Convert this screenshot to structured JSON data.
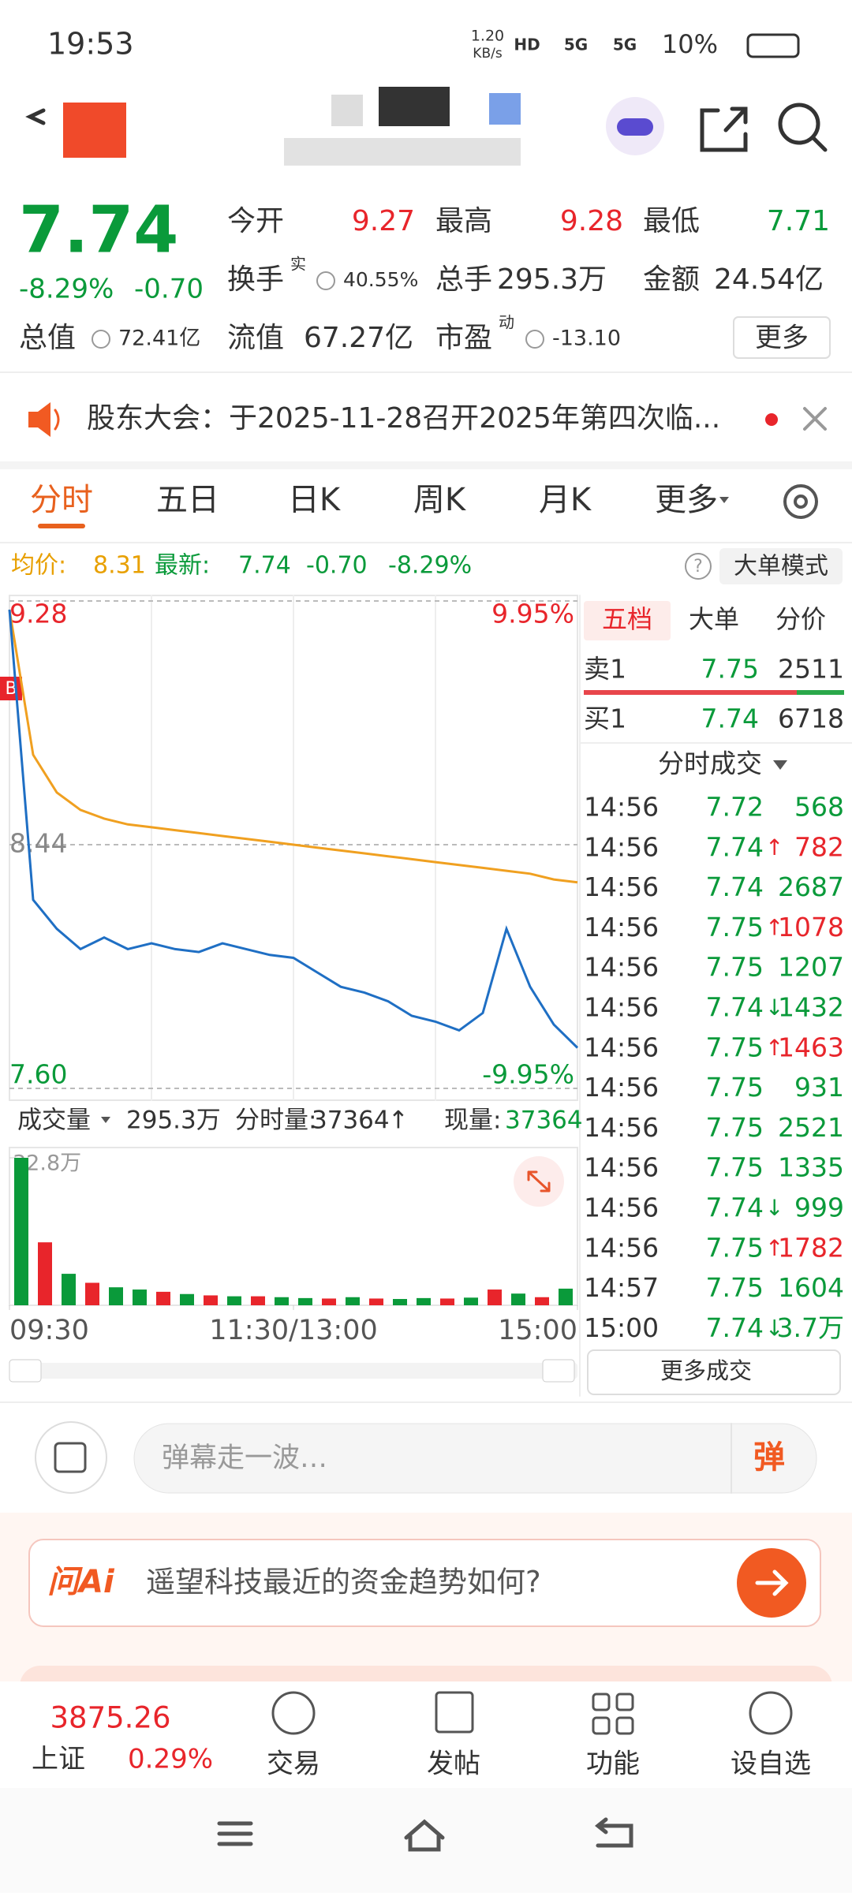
{
  "status_bar": {
    "time": "19:53",
    "net_speed": "1.20",
    "net_unit": "KB/s",
    "signals": [
      "HD",
      "5G",
      "5G"
    ],
    "battery": "10%"
  },
  "quote": {
    "price": "7.74",
    "change_pct": "-8.29%",
    "change": "-0.70",
    "fields": [
      {
        "label": "今开",
        "value": "9.27",
        "color": "#e8252b"
      },
      {
        "label": "最高",
        "value": "9.28",
        "color": "#e8252b"
      },
      {
        "label": "最低",
        "value": "7.71",
        "color": "#0a9a3a"
      },
      {
        "label": "换手",
        "sup": "实",
        "value": "40.55%",
        "color": "#333333"
      },
      {
        "label": "总手",
        "value": "295.3万",
        "color": "#333333"
      },
      {
        "label": "金额",
        "value": "24.54亿",
        "color": "#333333"
      },
      {
        "label": "总值",
        "value": "72.41亿",
        "color": "#333333"
      },
      {
        "label": "流值",
        "value": "67.27亿",
        "color": "#333333"
      },
      {
        "label": "市盈",
        "sup": "动",
        "value": "-13.10",
        "color": "#333333"
      }
    ],
    "more": "更多"
  },
  "notice": {
    "text": "股东大会：于2025-11-28召开2025年第四次临..."
  },
  "tabs": [
    "分时",
    "五日",
    "日K",
    "周K",
    "月K",
    "更多"
  ],
  "info_line": {
    "avg_label": "均价:",
    "avg": "8.31",
    "latest_label": "最新:",
    "latest": "7.74",
    "change": "-0.70",
    "change_pct": "-8.29%",
    "mode": "大单模式"
  },
  "chart_data": [
    {
      "type": "line",
      "buy_marker": "B",
      "x": [
        0,
        10,
        20,
        30,
        40,
        50,
        60,
        70,
        80,
        90,
        100,
        110,
        120,
        130,
        140,
        150,
        160,
        170,
        180,
        190,
        200,
        210,
        220,
        230,
        240
      ],
      "xlim": [
        0,
        240
      ],
      "ylim": [
        7.6,
        9.28
      ],
      "yticks": [
        {
          "value": 7.6,
          "label": "7.60"
        },
        8.44,
        9.28
      ],
      "ytick_colors": [
        "#0a9a3a",
        "#888888",
        "#e8252b"
      ],
      "y2lim": [
        -9.95,
        9.95
      ],
      "y2ticks": [
        {
          "value": -9.95,
          "label": "-9.95%"
        },
        {
          "value": 9.95,
          "label": "9.95%"
        }
      ],
      "y2tick_colors": [
        "#0a9a3a",
        "#e8252b"
      ],
      "series": [
        {
          "color": "#1f6fc4",
          "values": [
            9.25,
            8.25,
            8.15,
            8.08,
            8.12,
            8.08,
            8.1,
            8.08,
            8.07,
            8.1,
            8.08,
            8.06,
            8.05,
            8.0,
            7.95,
            7.93,
            7.9,
            7.85,
            7.83,
            7.8,
            7.86,
            8.15,
            7.95,
            7.82,
            7.74
          ]
        },
        {
          "color": "#f0a020",
          "values": [
            9.25,
            8.75,
            8.62,
            8.56,
            8.53,
            8.51,
            8.5,
            8.49,
            8.48,
            8.47,
            8.46,
            8.45,
            8.44,
            8.43,
            8.42,
            8.41,
            8.4,
            8.39,
            8.38,
            8.37,
            8.36,
            8.35,
            8.34,
            8.32,
            8.31
          ]
        }
      ]
    },
    {
      "type": "bar",
      "x": [
        5,
        15,
        25,
        35,
        45,
        55,
        65,
        75,
        85,
        95,
        105,
        115,
        125,
        135,
        145,
        155,
        165,
        175,
        185,
        195,
        205,
        215,
        225,
        235
      ],
      "xlim": [
        0,
        240
      ],
      "ylim": [
        0,
        32.8
      ],
      "yticks": [
        {
          "value": 32.8,
          "label": "32.8万"
        }
      ],
      "xticks": [
        {
          "value": 0,
          "label": "09:30"
        },
        {
          "value": 120,
          "label": "11:30/13:00"
        },
        {
          "value": 240,
          "label": "15:00"
        }
      ],
      "values": [
        32.8,
        14,
        7,
        5,
        4,
        3.5,
        3,
        2.5,
        2.2,
        2,
        2,
        1.8,
        1.6,
        1.5,
        1.8,
        1.5,
        1.4,
        1.6,
        1.5,
        1.7,
        3.5,
        2.6,
        1.8,
        3.7
      ],
      "colors": [
        "#0a9a3a",
        "#e8252b",
        "#0a9a3a",
        "#e8252b",
        "#0a9a3a",
        "#0a9a3a",
        "#e8252b",
        "#0a9a3a",
        "#e8252b",
        "#0a9a3a",
        "#e8252b",
        "#0a9a3a",
        "#0a9a3a",
        "#e8252b",
        "#0a9a3a",
        "#e8252b",
        "#0a9a3a",
        "#0a9a3a",
        "#e8252b",
        "#0a9a3a",
        "#e8252b",
        "#0a9a3a",
        "#e8252b",
        "#0a9a3a"
      ]
    }
  ],
  "volume_bar": {
    "label": "成交量",
    "total": "295.3万",
    "period_label": "分时量:",
    "period": "37364",
    "period_arrow": "↑",
    "now_label": "现量:",
    "now": "37364"
  },
  "order_book": {
    "tabs": [
      "五档",
      "大单",
      "分价"
    ],
    "rows": [
      {
        "label": "卖1",
        "price": "7.75",
        "volume": "2511"
      },
      {
        "label": "买1",
        "price": "7.74",
        "volume": "6718"
      }
    ]
  },
  "trades": {
    "title": "分时成交",
    "rows": [
      {
        "time": "14:56",
        "price": "7.72",
        "volume": "568"
      },
      {
        "time": "14:56",
        "price": "7.74",
        "arrow": "↑",
        "volume": "782"
      },
      {
        "time": "14:56",
        "price": "7.74",
        "volume": "2687"
      },
      {
        "time": "14:56",
        "price": "7.75",
        "arrow": "↑",
        "volume": "1078"
      },
      {
        "time": "14:56",
        "price": "7.75",
        "volume": "1207"
      },
      {
        "time": "14:56",
        "price": "7.74",
        "arrow": "↓",
        "volume": "1432"
      },
      {
        "time": "14:56",
        "price": "7.75",
        "arrow": "↑",
        "volume": "1463"
      },
      {
        "time": "14:56",
        "price": "7.75",
        "volume": "931"
      },
      {
        "time": "14:56",
        "price": "7.75",
        "volume": "2521"
      },
      {
        "time": "14:56",
        "price": "7.75",
        "volume": "1335"
      },
      {
        "time": "14:56",
        "price": "7.74",
        "arrow": "↓",
        "volume": "999"
      },
      {
        "time": "14:56",
        "price": "7.75",
        "arrow": "↑",
        "volume": "1782"
      },
      {
        "time": "14:57",
        "price": "7.75",
        "volume": "1604"
      },
      {
        "time": "15:00",
        "price": "7.74",
        "arrow": "↓",
        "volume": "3.7万"
      }
    ],
    "more": "更多成交"
  },
  "danmu": {
    "placeholder": "弹幕走一波…",
    "button": "弹"
  },
  "ai": {
    "logo": "问Ai",
    "prompt": "遥望科技最近的资金趋势如何?"
  },
  "bottom_nav": {
    "index_value": "3875.26",
    "index_name": "上证",
    "index_change": "0.29%",
    "items": [
      "交易",
      "发帖",
      "功能",
      "设自选"
    ]
  }
}
